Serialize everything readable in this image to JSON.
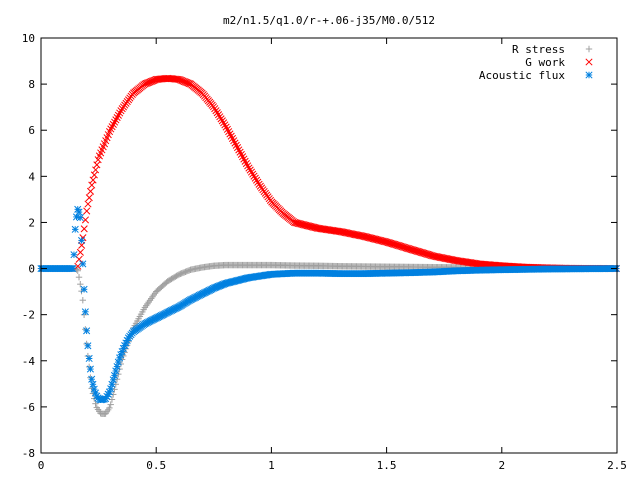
{
  "chart_data": {
    "type": "scatter",
    "title": "m2/n1.5/q1.0/r-+.06-j35/M0.0/512",
    "xlabel": "",
    "ylabel": "",
    "xlim": [
      0,
      2.5
    ],
    "ylim": [
      -8,
      10
    ],
    "xticks": [
      0,
      0.5,
      1,
      1.5,
      2,
      2.5
    ],
    "xtick_labels": [
      "0",
      "0.5",
      "1",
      "1.5",
      "2",
      "2.5"
    ],
    "yticks": [
      -8,
      -6,
      -4,
      -2,
      0,
      2,
      4,
      6,
      8,
      10
    ],
    "ytick_labels": [
      "-8",
      "-6",
      "-4",
      "-2",
      "0",
      "2",
      "4",
      "6",
      "8",
      "10"
    ],
    "grid": false,
    "legend_position": "top-right",
    "series": [
      {
        "name": "R stress",
        "marker": "plus",
        "color": "#a0a0a0",
        "x": [
          0.0,
          0.15,
          0.16,
          0.18,
          0.2,
          0.22,
          0.24,
          0.26,
          0.28,
          0.3,
          0.32,
          0.35,
          0.4,
          0.45,
          0.5,
          0.55,
          0.6,
          0.65,
          0.7,
          0.75,
          0.8,
          0.85,
          0.9,
          1.0,
          1.1,
          1.2,
          1.3,
          1.5,
          1.8,
          2.0,
          2.2,
          2.5
        ],
        "y": [
          0.0,
          0.0,
          -0.1,
          -1.2,
          -3.5,
          -5.2,
          -6.0,
          -6.3,
          -6.3,
          -6.0,
          -5.2,
          -4.0,
          -2.6,
          -1.7,
          -1.0,
          -0.55,
          -0.25,
          -0.05,
          0.05,
          0.12,
          0.15,
          0.15,
          0.15,
          0.15,
          0.13,
          0.12,
          0.1,
          0.08,
          0.05,
          0.02,
          0.0,
          0.0
        ]
      },
      {
        "name": "G work",
        "marker": "cross",
        "color": "#ff0000",
        "x": [
          0.16,
          0.18,
          0.2,
          0.22,
          0.25,
          0.3,
          0.35,
          0.4,
          0.45,
          0.5,
          0.55,
          0.6,
          0.65,
          0.7,
          0.75,
          0.8,
          0.85,
          0.9,
          0.95,
          1.0,
          1.05,
          1.1,
          1.2,
          1.3,
          1.4,
          1.5,
          1.6,
          1.7,
          1.8,
          1.9,
          2.0,
          2.1,
          2.2,
          2.3,
          2.5
        ],
        "y": [
          0.1,
          1.2,
          2.6,
          3.6,
          4.8,
          6.0,
          6.9,
          7.6,
          8.0,
          8.2,
          8.25,
          8.2,
          8.0,
          7.6,
          7.0,
          6.2,
          5.3,
          4.4,
          3.6,
          2.9,
          2.4,
          2.0,
          1.75,
          1.6,
          1.4,
          1.15,
          0.85,
          0.55,
          0.35,
          0.2,
          0.12,
          0.06,
          0.03,
          0.01,
          0.0
        ]
      },
      {
        "name": "Acoustic flux",
        "marker": "star",
        "color": "#0080e0",
        "x": [
          0.0,
          0.14,
          0.15,
          0.16,
          0.17,
          0.18,
          0.19,
          0.2,
          0.21,
          0.22,
          0.23,
          0.24,
          0.25,
          0.26,
          0.28,
          0.3,
          0.32,
          0.34,
          0.36,
          0.38,
          0.4,
          0.45,
          0.5,
          0.55,
          0.6,
          0.65,
          0.7,
          0.75,
          0.8,
          0.9,
          1.0,
          1.1,
          1.2,
          1.3,
          1.4,
          1.5,
          1.6,
          1.7,
          1.8,
          1.9,
          2.0,
          2.2,
          2.5
        ],
        "y": [
          0.0,
          0.0,
          2.0,
          2.6,
          2.3,
          0.5,
          -1.5,
          -3.0,
          -4.0,
          -4.8,
          -5.2,
          -5.5,
          -5.65,
          -5.7,
          -5.65,
          -5.3,
          -4.6,
          -3.9,
          -3.4,
          -3.0,
          -2.75,
          -2.4,
          -2.15,
          -1.9,
          -1.65,
          -1.35,
          -1.1,
          -0.85,
          -0.65,
          -0.4,
          -0.25,
          -0.2,
          -0.2,
          -0.22,
          -0.22,
          -0.2,
          -0.18,
          -0.15,
          -0.1,
          -0.07,
          -0.05,
          -0.02,
          0.0
        ]
      }
    ]
  }
}
